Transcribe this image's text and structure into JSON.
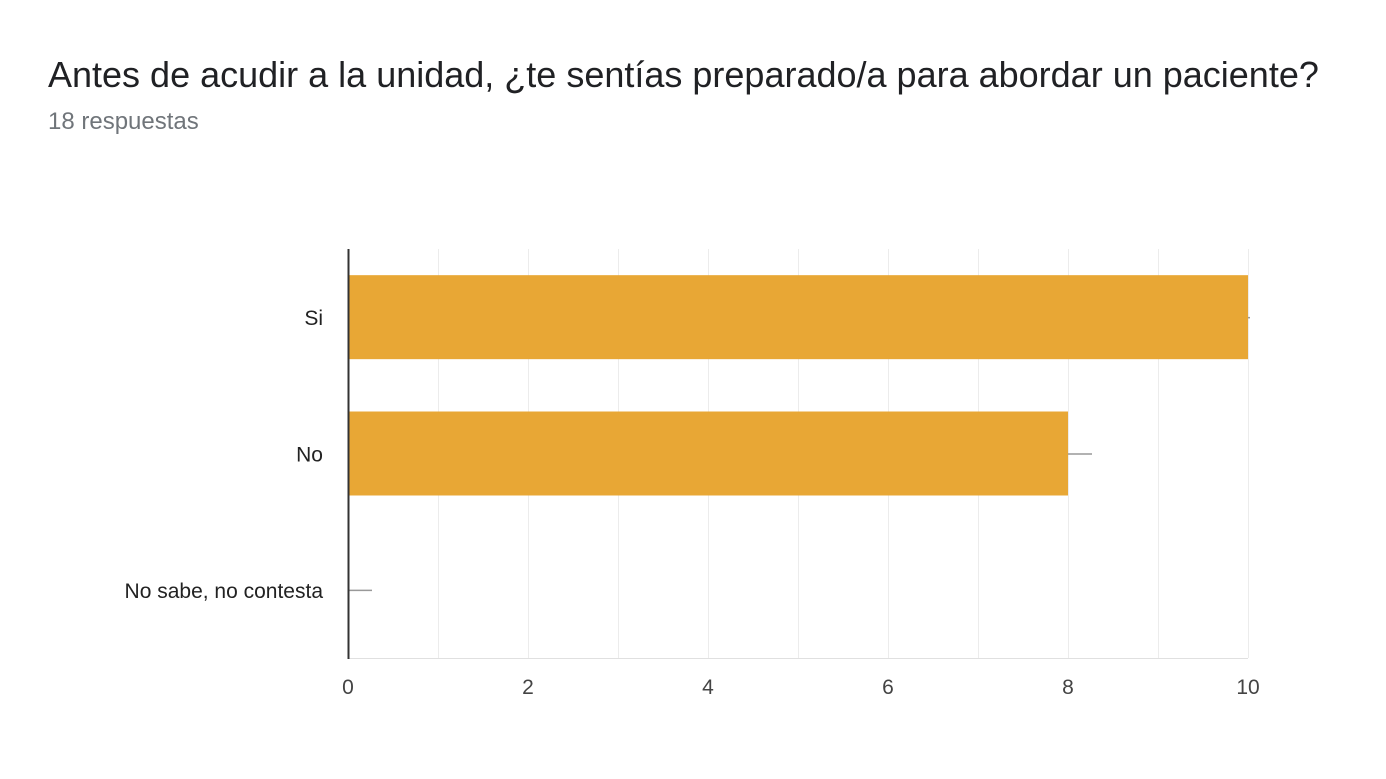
{
  "header": {
    "title": "Antes de acudir a la unidad, ¿te sentías preparado/a para abordar un paciente?",
    "responses": "18 respuestas"
  },
  "colors": {
    "bar": "#e8a735",
    "grid": "#ececec",
    "axis": "#333333",
    "tick_text": "#222222",
    "error": "#999999"
  },
  "chart_data": {
    "type": "bar",
    "orientation": "horizontal",
    "categories": [
      "Si",
      "No",
      "No sabe, no contesta"
    ],
    "values": [
      10,
      8,
      0
    ],
    "xlim": [
      0,
      10
    ],
    "x_ticks": [
      0,
      2,
      4,
      6,
      8,
      10
    ],
    "grid": true
  }
}
